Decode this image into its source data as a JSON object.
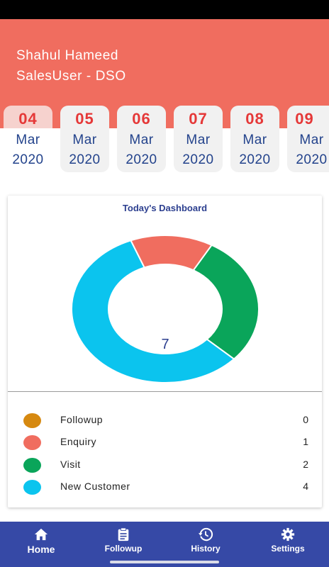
{
  "user": {
    "name": "Shahul Hameed",
    "role": "SalesUser - DSO"
  },
  "dates": [
    {
      "day": "04",
      "month": "Mar",
      "year": "2020",
      "selected": true
    },
    {
      "day": "05",
      "month": "Mar",
      "year": "2020",
      "selected": false
    },
    {
      "day": "06",
      "month": "Mar",
      "year": "2020",
      "selected": false
    },
    {
      "day": "07",
      "month": "Mar",
      "year": "2020",
      "selected": false
    },
    {
      "day": "08",
      "month": "Mar",
      "year": "2020",
      "selected": false
    },
    {
      "day": "09",
      "month": "Mar",
      "year": "2020",
      "selected": false
    }
  ],
  "dashboard": {
    "title": "Today's Dashboard",
    "total": "7",
    "legend": [
      {
        "label": "Followup",
        "value": 0,
        "color": "#d68910"
      },
      {
        "label": "Enquiry",
        "value": 1,
        "color": "#f06d5f"
      },
      {
        "label": "Visit",
        "value": 2,
        "color": "#0aa55a"
      },
      {
        "label": "New Customer",
        "value": 4,
        "color": "#0bc4ee"
      }
    ]
  },
  "nav": {
    "items": [
      {
        "label": "Home",
        "icon": "home-icon",
        "active": true
      },
      {
        "label": "Followup",
        "icon": "clipboard-icon",
        "active": false
      },
      {
        "label": "History",
        "icon": "history-icon",
        "active": false
      },
      {
        "label": "Settings",
        "icon": "gear-icon",
        "active": false
      }
    ]
  },
  "colors": {
    "header": "#f06d5f",
    "accent": "#23438c",
    "nav": "#3649a6",
    "day": "#e53838"
  }
}
